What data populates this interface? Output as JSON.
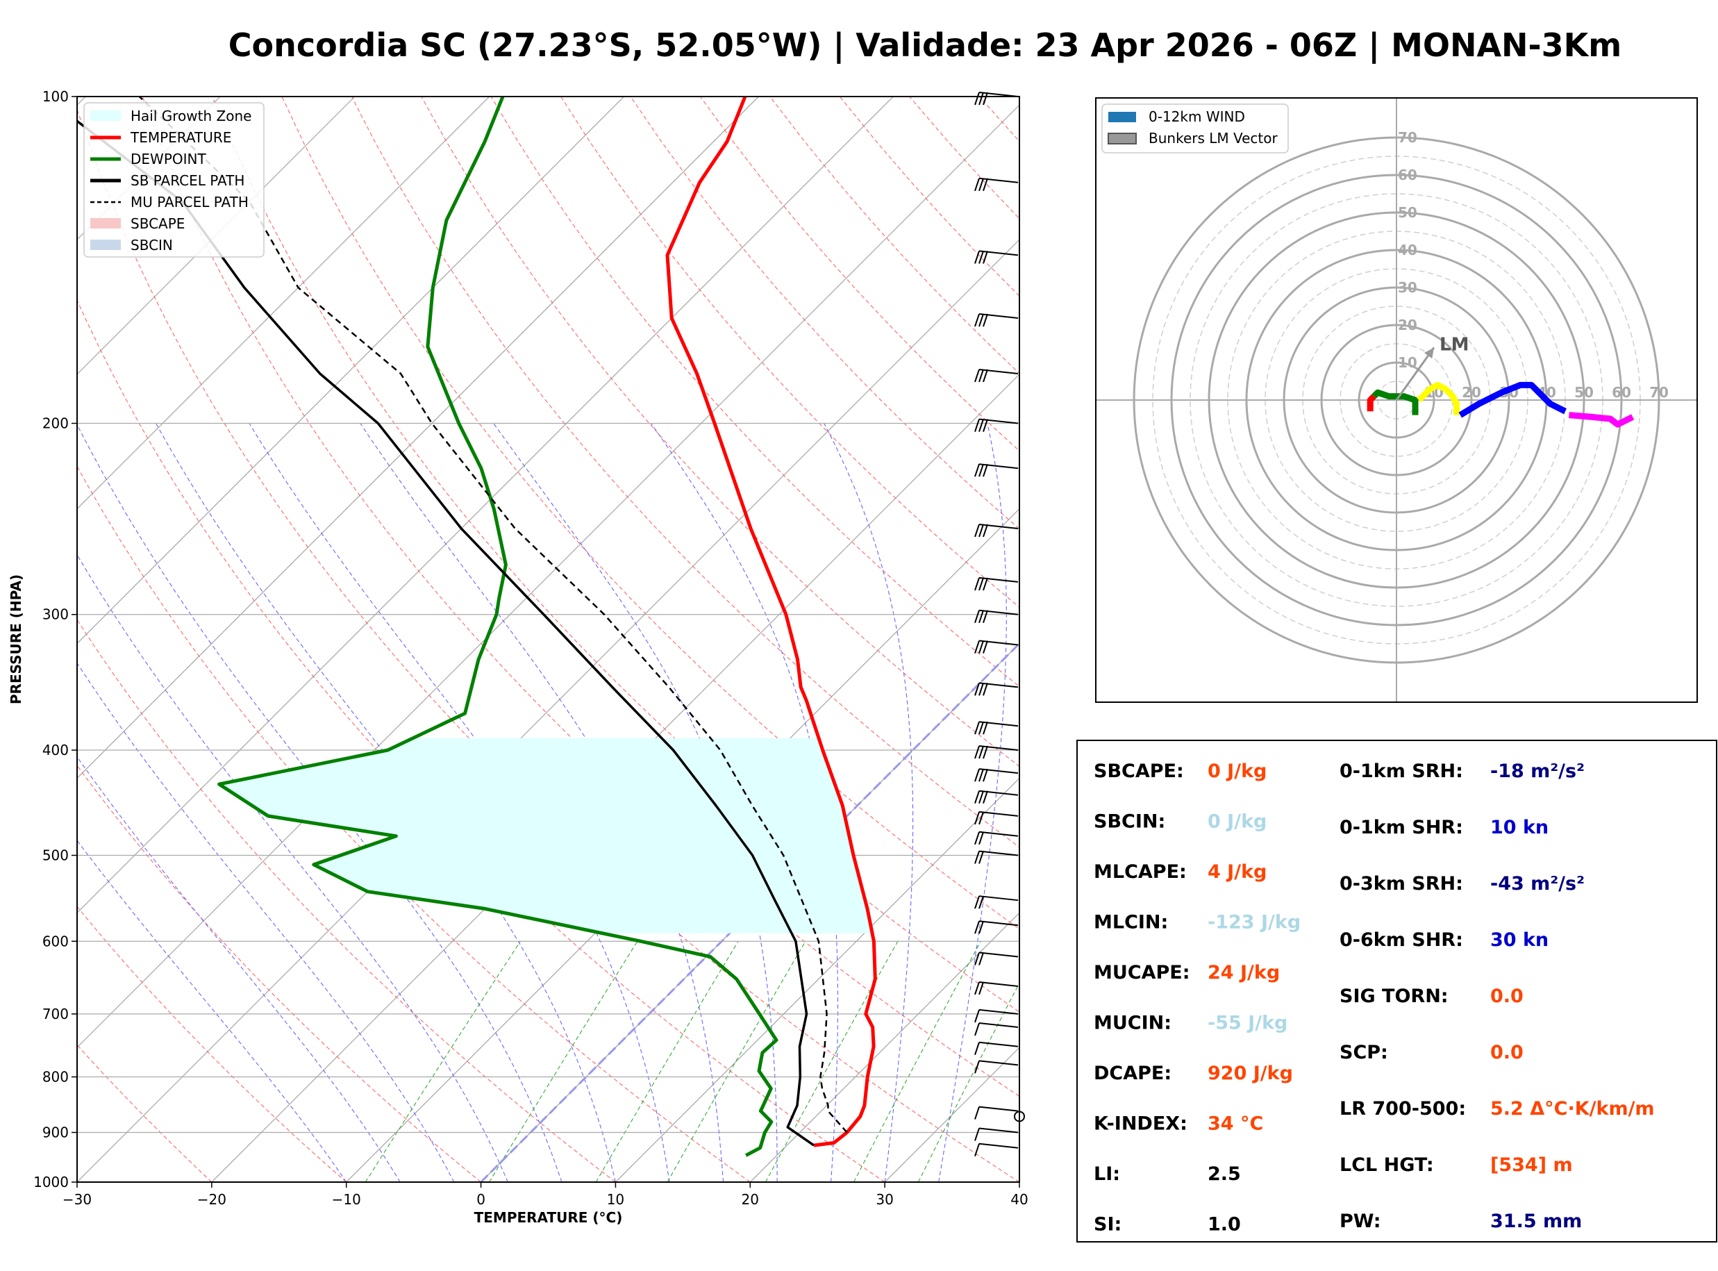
{
  "title": "Concordia SC (27.23°S, 52.05°W) | Validade: 23 Apr 2026 - 06Z | MONAN-3Km",
  "chart_data": [
    {
      "type": "line",
      "subtype": "skew-T log-P",
      "xlabel": "TEMPERATURE (°C)",
      "ylabel": "PRESSURE (HPA)",
      "xlim": [
        -30,
        40
      ],
      "ylim": [
        1000,
        100
      ],
      "y_scale": "log",
      "x_ticks": [
        "−30",
        "−20",
        "−10",
        "0",
        "10",
        "20",
        "30",
        "40"
      ],
      "y_ticks": [
        "100",
        "200",
        "300",
        "400",
        "500",
        "600",
        "700",
        "800",
        "900",
        "1000"
      ],
      "grid": true,
      "legend_position": "top-left",
      "legend": [
        {
          "label": "Hail Growth Zone",
          "color": "#e0ffff",
          "kind": "patch"
        },
        {
          "label": "TEMPERATURE",
          "color": "#ff0000",
          "kind": "line"
        },
        {
          "label": "DEWPOINT",
          "color": "#008000",
          "kind": "line"
        },
        {
          "label": "SB PARCEL PATH",
          "color": "#000000",
          "kind": "line"
        },
        {
          "label": "MU PARCEL PATH",
          "color": "#000000",
          "kind": "dashed"
        },
        {
          "label": "SBCAPE",
          "color": "#f8c8c8",
          "kind": "patch"
        },
        {
          "label": "SBCIN",
          "color": "#c8d8ea",
          "kind": "patch"
        }
      ],
      "series": [
        {
          "name": "TEMPERATURE",
          "color": "#ff0000",
          "points": [
            [
              925,
              22
            ],
            [
              920,
              23.3
            ],
            [
              900,
              23.5
            ],
            [
              870,
              23.3
            ],
            [
              850,
              22.8
            ],
            [
              800,
              20.9
            ],
            [
              750,
              19.1
            ],
            [
              720,
              17.6
            ],
            [
              700,
              16.1
            ],
            [
              650,
              14.2
            ],
            [
              600,
              11.3
            ],
            [
              560,
              8.4
            ],
            [
              500,
              3.4
            ],
            [
              450,
              -1.1
            ],
            [
              400,
              -6.7
            ],
            [
              360,
              -11.6
            ],
            [
              350,
              -13
            ],
            [
              330,
              -15.3
            ],
            [
              300,
              -19.5
            ],
            [
              250,
              -28.5
            ],
            [
              200,
              -39
            ],
            [
              180,
              -44
            ],
            [
              160,
              -50
            ],
            [
              140,
              -55
            ],
            [
              120,
              -58
            ],
            [
              110,
              -59
            ],
            [
              100,
              -61
            ]
          ]
        },
        {
          "name": "DEWPOINT",
          "color": "#008000",
          "points": [
            [
              945,
              17.7
            ],
            [
              930,
              18.2
            ],
            [
              900,
              17.4
            ],
            [
              880,
              17.1
            ],
            [
              860,
              15.5
            ],
            [
              820,
              14.6
            ],
            [
              790,
              12.4
            ],
            [
              760,
              11.3
            ],
            [
              740,
              11.4
            ],
            [
              700,
              8.2
            ],
            [
              650,
              3.9
            ],
            [
              620,
              0.3
            ],
            [
              600,
              -6
            ],
            [
              560,
              -20
            ],
            [
              540,
              -30
            ],
            [
              510,
              -36
            ],
            [
              480,
              -32
            ],
            [
              460,
              -43
            ],
            [
              430,
              -49
            ],
            [
              400,
              -39
            ],
            [
              370,
              -36
            ],
            [
              330,
              -39
            ],
            [
              300,
              -41
            ],
            [
              290,
              -42
            ],
            [
              270,
              -44
            ],
            [
              240,
              -49
            ],
            [
              220,
              -53
            ],
            [
              200,
              -58
            ],
            [
              170,
              -66
            ],
            [
              150,
              -70
            ],
            [
              130,
              -74
            ],
            [
              110,
              -77
            ],
            [
              100,
              -79
            ]
          ]
        },
        {
          "name": "SB PARCEL PATH",
          "color": "#000000",
          "points": [
            [
              925,
              22
            ],
            [
              890,
              18.7
            ],
            [
              850,
              17.8
            ],
            [
              800,
              15.9
            ],
            [
              750,
              13.6
            ],
            [
              700,
              11.7
            ],
            [
              600,
              5.5
            ],
            [
              550,
              0.9
            ],
            [
              500,
              -4.1
            ],
            [
              450,
              -10.5
            ],
            [
              400,
              -17.8
            ],
            [
              350,
              -27
            ],
            [
              300,
              -37.5
            ],
            [
              250,
              -50
            ],
            [
              200,
              -64
            ],
            [
              180,
              -72
            ],
            [
              150,
              -84
            ],
            [
              125,
              -95
            ],
            [
              100,
              -113
            ]
          ]
        },
        {
          "name": "MU PARCEL PATH",
          "color": "#000000",
          "points": [
            [
              900,
              23.5
            ],
            [
              860,
              20.5
            ],
            [
              850,
              20.1
            ],
            [
              820,
              18.4
            ],
            [
              800,
              17.4
            ],
            [
              760,
              15.9
            ],
            [
              700,
              13.2
            ],
            [
              600,
              7.2
            ],
            [
              500,
              -1.8
            ],
            [
              450,
              -7.8
            ],
            [
              400,
              -14.3
            ],
            [
              350,
              -22.8
            ],
            [
              300,
              -33
            ],
            [
              250,
              -46
            ],
            [
              200,
              -60
            ],
            [
              180,
              -66
            ],
            [
              150,
              -80
            ],
            [
              125,
              -90
            ],
            [
              100,
              -106
            ]
          ]
        }
      ],
      "hail_growth_zone_hpa": [
        390,
        590
      ],
      "wind_barbs_hpa": [
        100,
        120,
        140,
        160,
        180,
        200,
        220,
        250,
        280,
        300,
        320,
        350,
        380,
        400,
        420,
        440,
        460,
        480,
        500,
        550,
        580,
        620,
        660,
        700,
        720,
        750,
        780,
        860,
        900,
        930
      ]
    },
    {
      "type": "scatter",
      "subtype": "hodograph",
      "rings": [
        "10",
        "20",
        "30",
        "40",
        "50",
        "60",
        "70"
      ],
      "legend_position": "top-left",
      "legend": [
        {
          "label": "0-12km WIND",
          "color": "#1f77b4"
        },
        {
          "label": "Bunkers LM Vector",
          "color": "#999999"
        }
      ],
      "storm_vector_label": "LM",
      "storm_vector": [
        10,
        14
      ],
      "segments": [
        {
          "color": "#ff0000",
          "points": [
            [
              -7,
              -3
            ],
            [
              -7,
              0
            ],
            [
              -6,
              1
            ]
          ]
        },
        {
          "color": "#008000",
          "points": [
            [
              -6,
              1
            ],
            [
              -5,
              2
            ],
            [
              -2,
              1
            ],
            [
              2,
              1
            ],
            [
              5,
              0
            ],
            [
              5,
              -2
            ],
            [
              5,
              -4
            ]
          ]
        },
        {
          "color": "#ffff00",
          "points": [
            [
              6,
              0
            ],
            [
              9,
              3
            ],
            [
              11,
              4
            ],
            [
              13,
              3
            ],
            [
              15,
              1
            ],
            [
              16,
              -1
            ],
            [
              16,
              -4
            ]
          ]
        },
        {
          "color": "#0000ff",
          "points": [
            [
              17,
              -4
            ],
            [
              22,
              -1
            ],
            [
              28,
              2
            ],
            [
              33,
              4
            ],
            [
              36,
              4
            ],
            [
              38,
              2
            ],
            [
              41,
              -1
            ],
            [
              45,
              -3
            ]
          ]
        },
        {
          "color": "#ff00ff",
          "points": [
            [
              46,
              -4
            ],
            [
              52,
              -4.5
            ],
            [
              57,
              -5
            ],
            [
              59,
              -6.5
            ],
            [
              62,
              -5
            ],
            [
              63,
              -4.5
            ]
          ]
        }
      ]
    }
  ],
  "indices": [
    {
      "label": "SBCAPE:",
      "value": "0 J/kg",
      "color": "#ff4500"
    },
    {
      "label": "SBCIN:",
      "value": "0 J/kg",
      "color": "#add8e6"
    },
    {
      "label": "MLCAPE:",
      "value": "4 J/kg",
      "color": "#ff4500"
    },
    {
      "label": "MLCIN:",
      "value": "-123 J/kg",
      "color": "#add8e6"
    },
    {
      "label": "MUCAPE:",
      "value": "24 J/kg",
      "color": "#ff4500"
    },
    {
      "label": "MUCIN:",
      "value": "-55 J/kg",
      "color": "#add8e6"
    },
    {
      "label": "DCAPE:",
      "value": "920 J/kg",
      "color": "#ff4500"
    },
    {
      "label": "K-INDEX:",
      "value": "34 °C",
      "color": "#ff4500"
    },
    {
      "label": "LI:",
      "value": "2.5",
      "color": "#000000"
    },
    {
      "label": "SI:",
      "value": "1.0",
      "color": "#000000"
    },
    {
      "label": "0-1km SRH:",
      "value": "-18 m²/s²",
      "color": "#000080"
    },
    {
      "label": "0-1km SHR:",
      "value": "10 kn",
      "color": "#0000cd"
    },
    {
      "label": "0-3km SRH:",
      "value": "-43 m²/s²",
      "color": "#000080"
    },
    {
      "label": "0-6km SHR:",
      "value": "30 kn",
      "color": "#0000cd"
    },
    {
      "label": "SIG TORN:",
      "value": "0.0",
      "color": "#ff4500"
    },
    {
      "label": "SCP:",
      "value": "0.0",
      "color": "#ff4500"
    },
    {
      "label": "LR 700-500:",
      "value": "5.2 Δ°C·K/km/m",
      "color": "#ff4500"
    },
    {
      "label": "LCL HGT:",
      "value": "[534] m",
      "color": "#ff4500"
    },
    {
      "label": "PW:",
      "value": "31.5 mm",
      "color": "#000080"
    }
  ]
}
